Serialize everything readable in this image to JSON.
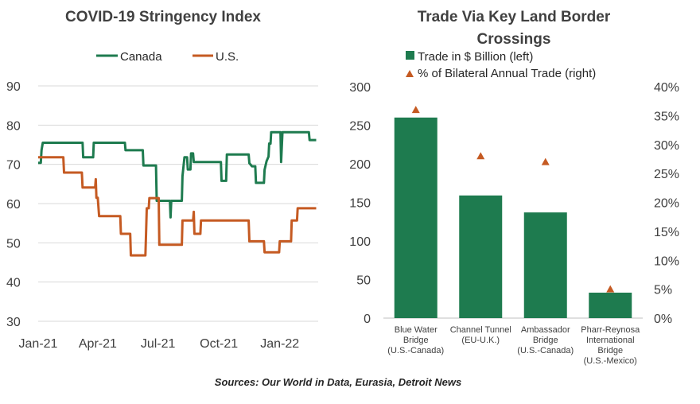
{
  "chart_data": [
    {
      "type": "line",
      "title": "COVID-19 Stringency Index",
      "x_ticks": [
        "Jan-21",
        "Apr-21",
        "Jul-21",
        "Oct-21",
        "Jan-22"
      ],
      "x_range": [
        "2021-01-01",
        "2022-02-28"
      ],
      "ylim": [
        30,
        90
      ],
      "y_ticks": [
        30,
        40,
        50,
        60,
        70,
        80,
        90
      ],
      "grid": true,
      "legend": "top",
      "series": [
        {
          "name": "Canada",
          "color": "#1e7b4f",
          "points": [
            [
              "2021-01-01",
              70.4
            ],
            [
              "2021-01-05",
              70.4
            ],
            [
              "2021-01-06",
              73.6
            ],
            [
              "2021-01-08",
              75.5
            ],
            [
              "2021-03-09",
              75.5
            ],
            [
              "2021-03-10",
              71.8
            ],
            [
              "2021-03-25",
              71.8
            ],
            [
              "2021-03-26",
              75.5
            ],
            [
              "2021-05-12",
              75.5
            ],
            [
              "2021-05-13",
              73.6
            ],
            [
              "2021-06-08",
              73.6
            ],
            [
              "2021-06-09",
              69.7
            ],
            [
              "2021-06-28",
              69.7
            ],
            [
              "2021-06-29",
              60.7
            ],
            [
              "2021-07-19",
              60.7
            ],
            [
              "2021-07-20",
              56.5
            ],
            [
              "2021-07-21",
              60.7
            ],
            [
              "2021-08-06",
              60.7
            ],
            [
              "2021-08-07",
              67.0
            ],
            [
              "2021-08-10",
              71.8
            ],
            [
              "2021-08-14",
              71.8
            ],
            [
              "2021-08-15",
              68.7
            ],
            [
              "2021-08-19",
              68.7
            ],
            [
              "2021-08-20",
              72.8
            ],
            [
              "2021-08-23",
              72.8
            ],
            [
              "2021-08-24",
              70.6
            ],
            [
              "2021-10-04",
              70.6
            ],
            [
              "2021-10-05",
              65.8
            ],
            [
              "2021-10-12",
              65.8
            ],
            [
              "2021-10-13",
              72.5
            ],
            [
              "2021-11-15",
              72.5
            ],
            [
              "2021-11-16",
              70.3
            ],
            [
              "2021-11-20",
              69.5
            ],
            [
              "2021-11-25",
              69.5
            ],
            [
              "2021-11-26",
              65.3
            ],
            [
              "2021-12-08",
              65.3
            ],
            [
              "2021-12-09",
              68.6
            ],
            [
              "2021-12-12",
              70.8
            ],
            [
              "2021-12-15",
              72.0
            ],
            [
              "2021-12-16",
              75.3
            ],
            [
              "2021-12-18",
              75.3
            ],
            [
              "2021-12-19",
              78.2
            ],
            [
              "2022-01-02",
              78.2
            ],
            [
              "2022-01-03",
              70.6
            ],
            [
              "2022-01-05",
              78.2
            ],
            [
              "2022-02-14",
              78.2
            ],
            [
              "2022-02-15",
              76.2
            ],
            [
              "2022-02-25",
              76.2
            ]
          ]
        },
        {
          "name": "U.S.",
          "color": "#c55a22",
          "points": [
            [
              "2021-01-01",
              71.8
            ],
            [
              "2021-02-08",
              71.8
            ],
            [
              "2021-02-09",
              67.9
            ],
            [
              "2021-03-08",
              67.9
            ],
            [
              "2021-03-09",
              64.1
            ],
            [
              "2021-03-28",
              64.1
            ],
            [
              "2021-03-29",
              66.2
            ],
            [
              "2021-03-30",
              61.5
            ],
            [
              "2021-04-01",
              61.5
            ],
            [
              "2021-04-03",
              56.8
            ],
            [
              "2021-05-05",
              56.8
            ],
            [
              "2021-05-06",
              52.3
            ],
            [
              "2021-05-20",
              52.3
            ],
            [
              "2021-05-21",
              46.8
            ],
            [
              "2021-06-12",
              46.8
            ],
            [
              "2021-06-13",
              52.3
            ],
            [
              "2021-06-14",
              58.8
            ],
            [
              "2021-06-17",
              58.8
            ],
            [
              "2021-06-18",
              61.4
            ],
            [
              "2021-07-02",
              61.4
            ],
            [
              "2021-07-03",
              49.5
            ],
            [
              "2021-08-06",
              49.5
            ],
            [
              "2021-08-07",
              55.7
            ],
            [
              "2021-08-23",
              55.7
            ],
            [
              "2021-08-24",
              57.9
            ],
            [
              "2021-08-25",
              52.3
            ],
            [
              "2021-09-03",
              52.3
            ],
            [
              "2021-09-04",
              55.7
            ],
            [
              "2021-11-15",
              55.7
            ],
            [
              "2021-11-16",
              50.4
            ],
            [
              "2021-12-08",
              50.4
            ],
            [
              "2021-12-09",
              47.6
            ],
            [
              "2021-12-31",
              47.6
            ],
            [
              "2022-01-01",
              50.4
            ],
            [
              "2022-01-18",
              50.4
            ],
            [
              "2022-01-19",
              55.7
            ],
            [
              "2022-01-27",
              55.7
            ],
            [
              "2022-01-28",
              58.8
            ],
            [
              "2022-02-25",
              58.8
            ]
          ]
        }
      ]
    },
    {
      "type": "bar",
      "title": "Trade Via Key Land Border Crossings",
      "categories": [
        "Blue Water Bridge (U.S.-Canada)",
        "Channel Tunnel (EU-U.K.)",
        "Ambassador Bridge (U.S.-Canada)",
        "Pharr-Reynosa International Bridge (U.S.-Mexico)"
      ],
      "series": [
        {
          "name": "Trade in $ Billion (left)",
          "values": [
            260,
            159,
            137,
            33
          ],
          "color": "#1e7b4f",
          "axis": "left"
        },
        {
          "name": "% of Bilateral Annual Trade (right)",
          "values": [
            36,
            28,
            27,
            5
          ],
          "color": "#c55a22",
          "axis": "right",
          "marker": "triangle"
        }
      ],
      "ylim_left": [
        0,
        300
      ],
      "y_ticks_left": [
        0,
        50,
        100,
        150,
        200,
        250,
        300
      ],
      "ylim_right": [
        0,
        40
      ],
      "y_ticks_right": [
        "0%",
        "5%",
        "10%",
        "15%",
        "20%",
        "25%",
        "30%",
        "35%",
        "40%"
      ],
      "legend": "top"
    }
  ],
  "footer": {
    "source": "Sources: Our World in Data, Eurasia, Detroit News"
  }
}
